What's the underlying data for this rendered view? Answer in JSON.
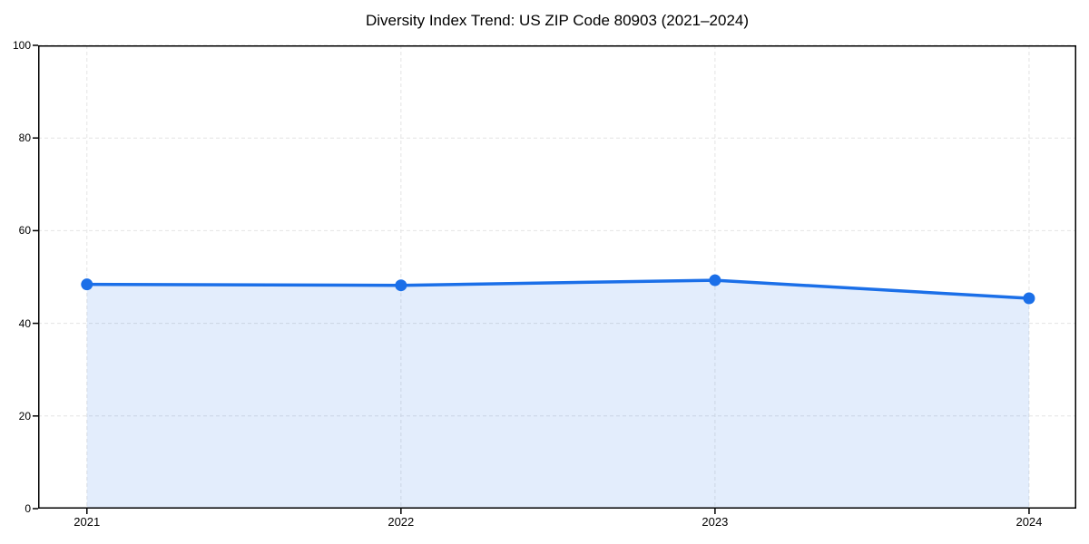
{
  "chart_data": {
    "type": "area",
    "title": "Diversity Index Trend: US ZIP Code 80903 (2021–2024)",
    "categories": [
      "2021",
      "2022",
      "2023",
      "2024"
    ],
    "values": [
      48.4,
      48.2,
      49.3,
      45.4
    ],
    "xlabel": "",
    "ylabel": "",
    "ylim": [
      0,
      100
    ],
    "yticks": [
      0,
      20,
      40,
      60,
      80,
      100
    ],
    "grid": true,
    "grid_style": "dashed",
    "legend": false,
    "marker": "circle",
    "colors": {
      "line": "#1b6fe8",
      "marker": "#1b6fe8",
      "fill": "rgba(27,111,232,0.12)",
      "grid": "#e4e4e4",
      "axis": "#000000",
      "text": "#000000",
      "background": "#ffffff"
    }
  }
}
